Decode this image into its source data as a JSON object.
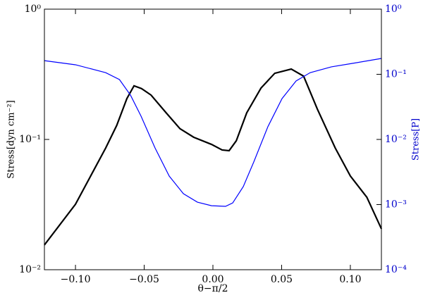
{
  "chart_data": {
    "type": "line",
    "xlabel": "θ−π/2",
    "ylabel": "Stress[dyn cm⁻²]",
    "y2label": "Stress[P]",
    "xlim": [
      -0.1226,
      0.1226
    ],
    "xticks": [
      {
        "value": -0.1,
        "label": "−0.10"
      },
      {
        "value": -0.05,
        "label": "−0.05"
      },
      {
        "value": 0,
        "label": "0.00"
      },
      {
        "value": 0.05,
        "label": "0.05"
      },
      {
        "value": 0.1,
        "label": "0.10"
      }
    ],
    "ylim": [
      0.01,
      1
    ],
    "yscale": "log",
    "yticks": [
      {
        "value": 0.01,
        "label": "10⁻²"
      },
      {
        "value": 0.1,
        "label": "10⁻¹"
      },
      {
        "value": 1,
        "label": "10⁰"
      }
    ],
    "y2lim": [
      0.0001,
      1
    ],
    "y2scale": "log",
    "y2ticks": [
      {
        "value": 0.0001,
        "label": "10⁻⁴"
      },
      {
        "value": 0.001,
        "label": "10⁻³"
      },
      {
        "value": 0.01,
        "label": "10⁻²"
      },
      {
        "value": 0.1,
        "label": "10⁻¹"
      },
      {
        "value": 1,
        "label": "10⁰"
      }
    ],
    "y2color": "#0000cc",
    "series": [
      {
        "color": "#000000",
        "axis": "y",
        "x": [
          -0.1226,
          -0.1,
          -0.078,
          -0.07,
          -0.0626,
          -0.0574,
          -0.052,
          -0.045,
          -0.034,
          -0.024,
          -0.014,
          -0.001,
          0.0067,
          0.0118,
          0.017,
          0.0246,
          0.035,
          0.045,
          0.057,
          0.066,
          0.076,
          0.089,
          0.1,
          0.112,
          0.1226
        ],
        "values": [
          0.0155,
          0.0318,
          0.086,
          0.128,
          0.206,
          0.258,
          0.246,
          0.219,
          0.16,
          0.121,
          0.104,
          0.0916,
          0.083,
          0.082,
          0.0976,
          0.16,
          0.248,
          0.322,
          0.347,
          0.306,
          0.171,
          0.086,
          0.0524,
          0.036,
          0.0206
        ]
      },
      {
        "color": "#0000ff",
        "axis": "y2",
        "x": [
          -0.1226,
          -0.1,
          -0.078,
          -0.068,
          -0.06,
          -0.0523,
          -0.0421,
          -0.0318,
          -0.0215,
          -0.0113,
          -0.001,
          0.0092,
          0.0144,
          0.0221,
          0.0297,
          0.04,
          0.0503,
          0.0605,
          0.0708,
          0.0862,
          0.1015,
          0.1226
        ],
        "values": [
          0.162,
          0.14,
          0.106,
          0.083,
          0.048,
          0.0228,
          0.0074,
          0.00274,
          0.00147,
          0.00109,
          0.00096,
          0.00094,
          0.00106,
          0.00189,
          0.0045,
          0.0157,
          0.0424,
          0.0789,
          0.106,
          0.13,
          0.147,
          0.175
        ]
      }
    ]
  }
}
